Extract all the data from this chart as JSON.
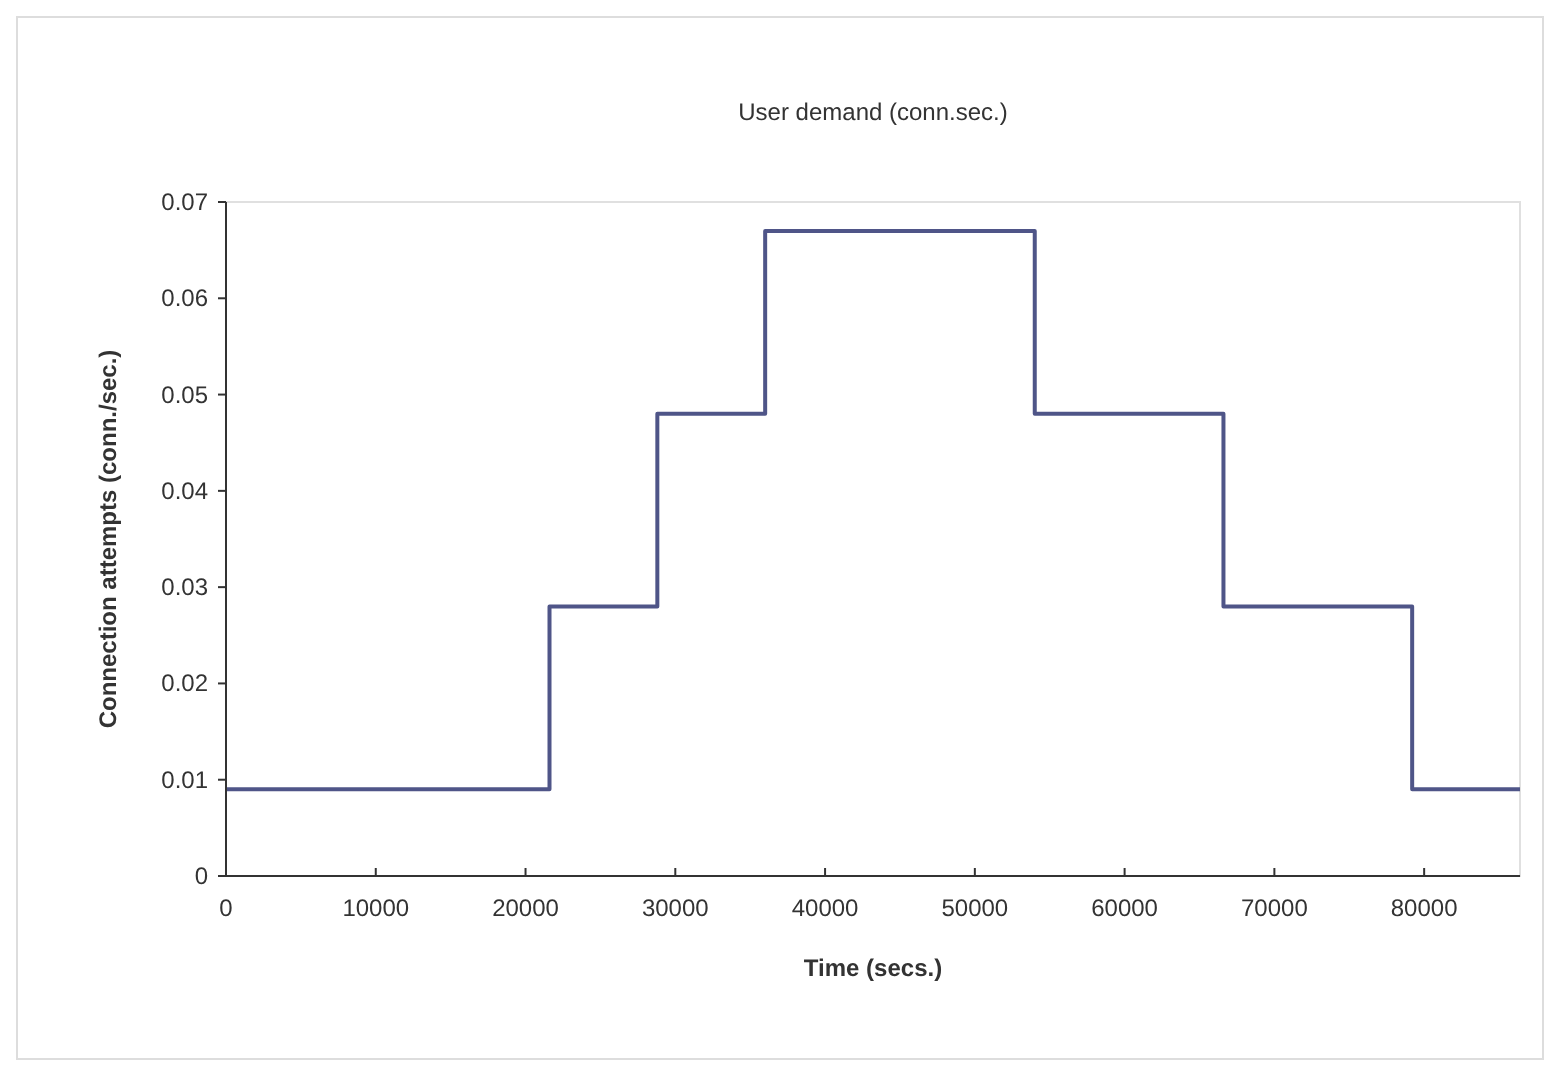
{
  "chart_data": {
    "type": "step",
    "title": "User demand (conn.sec.)",
    "xlabel": "Time (secs.)",
    "ylabel": "Connection attempts (conn./sec.)",
    "x": [
      0,
      21600,
      28800,
      36000,
      54000,
      66600,
      79200,
      86400
    ],
    "series": [
      {
        "color": "#4f5588",
        "values": [
          0.009,
          0.028,
          0.048,
          0.067,
          0.048,
          0.028,
          0.009,
          0.009
        ]
      }
    ],
    "xlim": [
      0,
      86400
    ],
    "xticks": [
      0,
      10000,
      20000,
      30000,
      40000,
      50000,
      60000,
      70000,
      80000
    ],
    "ylim": [
      0,
      0.07
    ],
    "yticks": [
      0,
      0.01,
      0.02,
      0.03,
      0.04,
      0.05,
      0.06,
      0.07
    ],
    "grid": false
  }
}
